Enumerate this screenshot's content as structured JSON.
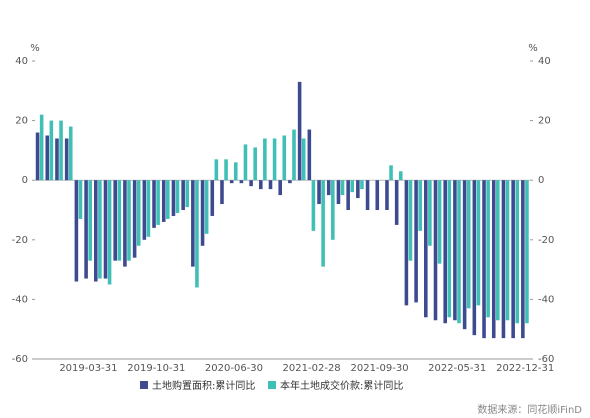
{
  "chart_data": {
    "type": "bar",
    "y_unit": "%",
    "y2_unit": "%",
    "categories": [
      null,
      null,
      null,
      null,
      null,
      "2019-03-31",
      null,
      null,
      null,
      null,
      null,
      null,
      "2019-10-31",
      null,
      null,
      null,
      null,
      null,
      null,
      null,
      "2020-06-30",
      null,
      null,
      null,
      null,
      null,
      null,
      null,
      "2021-02-28",
      null,
      null,
      null,
      null,
      null,
      null,
      "2021-09-30",
      null,
      null,
      null,
      null,
      null,
      null,
      null,
      "2022-05-31",
      null,
      null,
      null,
      null,
      null,
      null,
      "2022-12-31"
    ],
    "series": [
      {
        "name": "土地购置面积:累计同比",
        "color": "#3d4a8f",
        "values": [
          16,
          15,
          14,
          14,
          -34,
          -33,
          -34,
          -33,
          -27,
          -29,
          -26,
          -20,
          -16,
          -14,
          -12,
          -10,
          -29,
          -22,
          -12,
          -8,
          -1,
          -1,
          -2,
          -3,
          -3,
          -5,
          -1,
          33,
          17,
          -8,
          -5,
          -8,
          -10,
          -6,
          -10,
          -10,
          -10,
          -15,
          -42,
          -41,
          -46,
          -47,
          -48,
          -47,
          -50,
          -52,
          -53,
          -53,
          -53,
          -53,
          -53
        ]
      },
      {
        "name": "本年土地成交价款:累计同比",
        "color": "#3fbfb5",
        "axis": "y2",
        "values": [
          22,
          20,
          20,
          18,
          -13,
          -27,
          -33,
          -35,
          -27,
          -27,
          -22,
          -19,
          -15,
          -13,
          -11,
          -9,
          -36,
          -18,
          7,
          7,
          6,
          12,
          11,
          14,
          14,
          15,
          17,
          14,
          -17,
          -29,
          -20,
          -5,
          -4,
          -3,
          0,
          0,
          5,
          3,
          -27,
          -17,
          -22,
          -28,
          -46,
          -48,
          -43,
          -42,
          -46,
          -47,
          -47,
          -48,
          -48
        ]
      }
    ],
    "ylim": [
      -60,
      40
    ],
    "yticks": [
      -60,
      -40,
      -20,
      0,
      20,
      40
    ],
    "y2lim": [
      -60,
      40
    ],
    "y2ticks": [
      -60,
      -40,
      -20,
      0,
      20,
      40
    ],
    "source": "数据来源：同花顺iFinD"
  }
}
